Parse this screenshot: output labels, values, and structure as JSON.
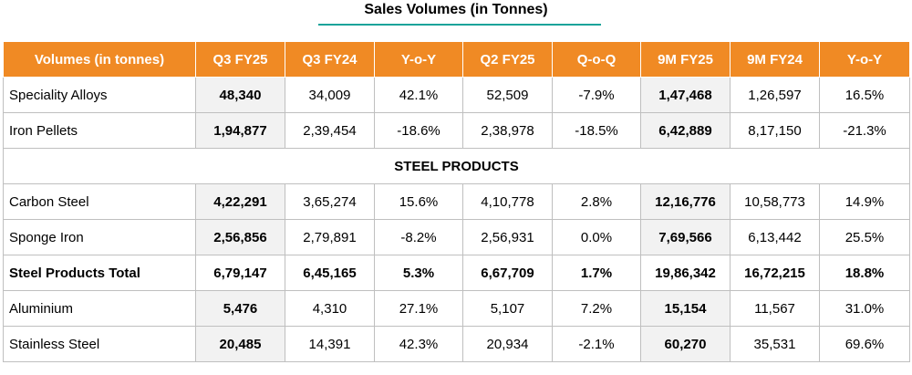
{
  "title": "Sales Volumes (in Tonnes)",
  "headers": [
    "Volumes (in tonnes)",
    "Q3 FY25",
    "Q3 FY24",
    "Y-o-Y",
    "Q2 FY25",
    "Q-o-Q",
    "9M FY25",
    "9M FY24",
    "Y-o-Y"
  ],
  "rows": [
    {
      "label": "Speciality Alloys",
      "q3fy25": "48,340",
      "q3fy24": "34,009",
      "yoy": "42.1%",
      "q2fy25": "52,509",
      "qoq": "-7.9%",
      "m9fy25": "1,47,468",
      "m9fy24": "1,26,597",
      "yoy9m": "16.5%"
    },
    {
      "label": "Iron Pellets",
      "q3fy25": "1,94,877",
      "q3fy24": "2,39,454",
      "yoy": "-18.6%",
      "q2fy25": "2,38,978",
      "qoq": "-18.5%",
      "m9fy25": "6,42,889",
      "m9fy24": "8,17,150",
      "yoy9m": "-21.3%"
    }
  ],
  "section_label": "STEEL PRODUCTS",
  "steel_rows": [
    {
      "label": "Carbon Steel",
      "q3fy25": "4,22,291",
      "q3fy24": "3,65,274",
      "yoy": "15.6%",
      "q2fy25": "4,10,778",
      "qoq": "2.8%",
      "m9fy25": "12,16,776",
      "m9fy24": "10,58,773",
      "yoy9m": "14.9%"
    },
    {
      "label": "Sponge Iron",
      "q3fy25": "2,56,856",
      "q3fy24": "2,79,891",
      "yoy": "-8.2%",
      "q2fy25": "2,56,931",
      "qoq": "0.0%",
      "m9fy25": "7,69,566",
      "m9fy24": "6,13,442",
      "yoy9m": "25.5%"
    },
    {
      "label": "Steel Products Total",
      "q3fy25": "6,79,147",
      "q3fy24": "6,45,165",
      "yoy": "5.3%",
      "q2fy25": "6,67,709",
      "qoq": "1.7%",
      "m9fy25": "19,86,342",
      "m9fy24": "16,72,215",
      "yoy9m": "18.8%"
    },
    {
      "label": "Aluminium",
      "q3fy25": "5,476",
      "q3fy24": "4,310",
      "yoy": "27.1%",
      "q2fy25": "5,107",
      "qoq": "7.2%",
      "m9fy25": "15,154",
      "m9fy24": "11,567",
      "yoy9m": "31.0%"
    },
    {
      "label": "Stainless Steel",
      "q3fy25": "20,485",
      "q3fy24": "14,391",
      "yoy": "42.3%",
      "q2fy25": "20,934",
      "qoq": "-2.1%",
      "m9fy25": "60,270",
      "m9fy24": "35,531",
      "yoy9m": "69.6%"
    }
  ],
  "colors": {
    "header_bg": "#f08a24",
    "title_rule": "#1aa39a",
    "highlight_bg": "#f2f2f2"
  }
}
